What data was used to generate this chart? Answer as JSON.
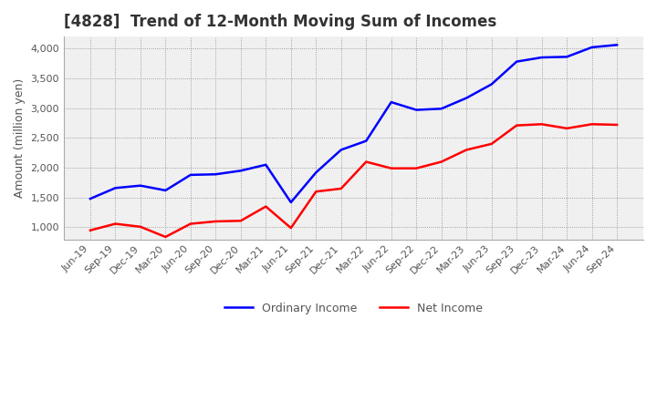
{
  "title": "[4828]  Trend of 12-Month Moving Sum of Incomes",
  "ylabel": "Amount (million yen)",
  "background_color": "#ffffff",
  "plot_bg_color": "#f0f0f0",
  "grid_color": "#888888",
  "ordinary_income_color": "#0000ff",
  "net_income_color": "#ff0000",
  "ordinary_income_label": "Ordinary Income",
  "net_income_label": "Net Income",
  "x_labels": [
    "Jun-19",
    "Sep-19",
    "Dec-19",
    "Mar-20",
    "Jun-20",
    "Sep-20",
    "Dec-20",
    "Mar-21",
    "Jun-21",
    "Sep-21",
    "Dec-21",
    "Mar-22",
    "Jun-22",
    "Sep-22",
    "Dec-22",
    "Mar-23",
    "Jun-23",
    "Sep-23",
    "Dec-23",
    "Mar-24",
    "Jun-24",
    "Sep-24"
  ],
  "ordinary_income": [
    1480,
    1660,
    1700,
    1620,
    1880,
    1890,
    1950,
    2050,
    1420,
    1920,
    2300,
    2450,
    3100,
    2970,
    2990,
    3170,
    3400,
    3780,
    3850,
    3860,
    4020,
    4060
  ],
  "net_income": [
    950,
    1060,
    1010,
    840,
    1060,
    1100,
    1110,
    1350,
    990,
    1600,
    1650,
    2100,
    1990,
    1990,
    2100,
    2300,
    2400,
    2710,
    2730,
    2660,
    2730,
    2720
  ],
  "ylim": [
    800,
    4200
  ],
  "yticks": [
    1000,
    1500,
    2000,
    2500,
    3000,
    3500,
    4000
  ],
  "title_fontsize": 12,
  "axis_label_fontsize": 9,
  "tick_fontsize": 8
}
